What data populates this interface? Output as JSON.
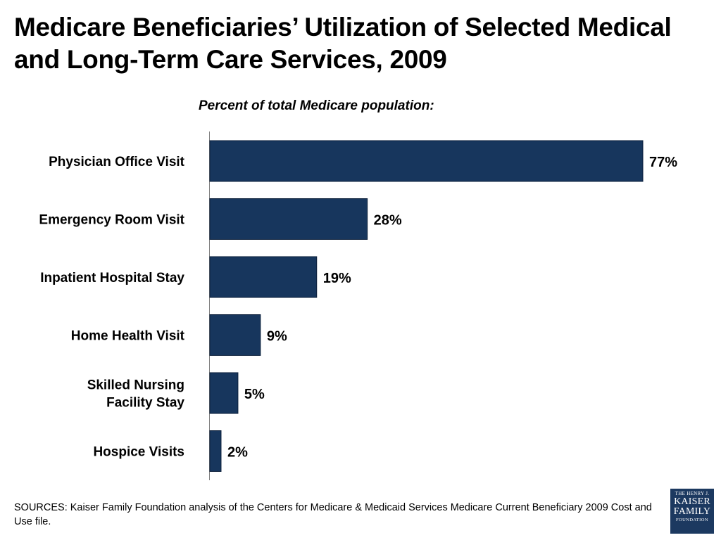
{
  "title": "Medicare Beneficiaries’ Utilization of Selected Medical and Long-Term Care Services, 2009",
  "subtitle": "Percent of total Medicare population:",
  "sources": "SOURCES: Kaiser Family Foundation analysis of the Centers for Medicare & Medicaid Services Medicare Current Beneficiary 2009 Cost and Use file.",
  "logo": {
    "line1": "THE HENRY J.",
    "line2": "KAISER",
    "line3": "FAMILY",
    "line4": "FOUNDATION"
  },
  "colors": {
    "bar": "#17365d",
    "axis": "#808080",
    "logo_bg": "#1c3960"
  },
  "chart_data": {
    "type": "bar",
    "orientation": "horizontal",
    "title": "Medicare Beneficiaries’ Utilization of Selected Medical and Long-Term Care Services, 2009",
    "subtitle": "Percent of total Medicare population:",
    "categories": [
      [
        "Physician Office Visit"
      ],
      [
        "Emergency Room Visit"
      ],
      [
        "Inpatient Hospital Stay"
      ],
      [
        "Home Health Visit"
      ],
      [
        "Skilled Nursing",
        "Facility Stay"
      ],
      [
        "Hospice Visits"
      ]
    ],
    "values": [
      77,
      28,
      19,
      9,
      5,
      2
    ],
    "value_labels": [
      "77%",
      "28%",
      "19%",
      "9%",
      "5%",
      "2%"
    ],
    "xlim": [
      0,
      77
    ],
    "unit": "%",
    "grid": false
  }
}
